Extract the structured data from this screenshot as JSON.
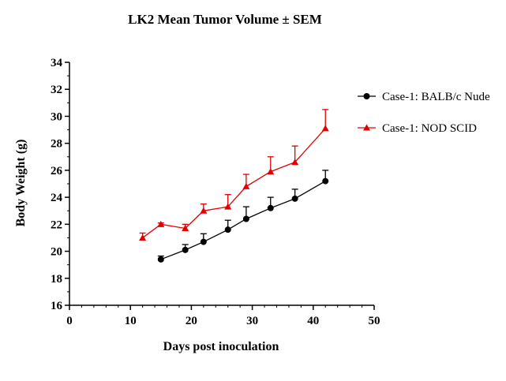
{
  "chart_data": {
    "type": "line",
    "title": "LK2 Mean Tumor Volume ± SEM",
    "xlabel": "Days post inoculation",
    "ylabel": "Body Weight (g)",
    "xlim": [
      0,
      50
    ],
    "ylim": [
      16,
      34
    ],
    "xticks": [
      "0",
      "10",
      "20",
      "30",
      "40",
      "50"
    ],
    "yticks": [
      "16",
      "18",
      "20",
      "22",
      "24",
      "26",
      "28",
      "30",
      "32",
      "34"
    ],
    "grid": false,
    "legend": "right",
    "series": [
      {
        "name": "Case-1: BALB/c Nude",
        "color": "#000000",
        "marker": "circle",
        "x": [
          15,
          19,
          22,
          26,
          29,
          33,
          37,
          42
        ],
        "y": [
          19.4,
          20.1,
          20.7,
          21.6,
          22.4,
          23.2,
          23.9,
          25.2
        ],
        "sem": [
          0.25,
          0.4,
          0.6,
          0.7,
          0.9,
          0.8,
          0.7,
          0.8
        ]
      },
      {
        "name": "Case-1: NOD SCID",
        "color": "#e00000",
        "marker": "triangle",
        "x": [
          12,
          15,
          19,
          22,
          26,
          29,
          33,
          37,
          42
        ],
        "y": [
          21.0,
          22.0,
          21.7,
          23.0,
          23.3,
          24.8,
          25.9,
          26.6,
          29.1
        ],
        "sem": [
          0.35,
          0.1,
          0.3,
          0.5,
          0.9,
          0.9,
          1.1,
          1.2,
          1.4
        ]
      }
    ]
  }
}
